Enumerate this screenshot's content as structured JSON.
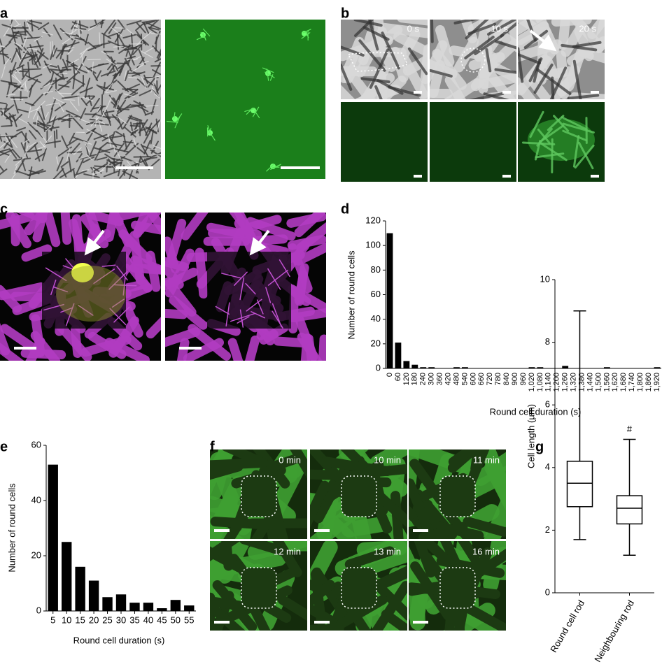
{
  "panel_labels": [
    "a",
    "b",
    "c",
    "d",
    "e",
    "f",
    "g"
  ],
  "image_labels": {
    "b": [
      "0 s",
      "10 s",
      "20 s"
    ],
    "f": [
      "0 min",
      "10 min",
      "11 min",
      "12 min",
      "13 min",
      "16 min"
    ]
  },
  "chart_data": [
    {
      "type": "bar",
      "color": "#000000",
      "x_label": "Round cell duration (s)",
      "y_label": "Number of round cells",
      "categories": [
        "0",
        "60",
        "120",
        "180",
        "240",
        "300",
        "360",
        "420",
        "480",
        "540",
        "600",
        "660",
        "720",
        "780",
        "840",
        "900",
        "960",
        "1,020",
        "1,080",
        "1,140",
        "1,200",
        "1,260",
        "1,320",
        "1,380",
        "1,440",
        "1,500",
        "1,560",
        "1,620",
        "1,680",
        "1,740",
        "1,800",
        "1,860",
        "1,920"
      ],
      "values": [
        110,
        21,
        6,
        3,
        1,
        1,
        0,
        0,
        1,
        1,
        0,
        0,
        0,
        0,
        0,
        0,
        0,
        1,
        1,
        0,
        0,
        2,
        0,
        0,
        0,
        0,
        1,
        0,
        0,
        0,
        0,
        0,
        1
      ],
      "ylim": [
        0,
        120
      ],
      "yticks": [
        0,
        20,
        40,
        60,
        80,
        100,
        120
      ]
    },
    {
      "type": "bar",
      "color": "#000000",
      "x_label": "Round cell duration (s)",
      "y_label": "Number of round cells",
      "categories": [
        "5",
        "10",
        "15",
        "20",
        "25",
        "30",
        "35",
        "40",
        "45",
        "50",
        "55"
      ],
      "values": [
        53,
        25,
        16,
        11,
        5,
        6,
        3,
        3,
        1,
        4,
        2
      ],
      "ylim": [
        0,
        60
      ],
      "yticks": [
        0,
        20,
        40,
        60
      ]
    },
    {
      "type": "box",
      "y_label": "Cell length (µm)",
      "categories": [
        "Round cell rod",
        "Neighbouring rod"
      ],
      "boxes": [
        {
          "min": 1.7,
          "q1": 2.75,
          "median": 3.5,
          "q3": 4.2,
          "max": 9.0
        },
        {
          "min": 1.2,
          "q1": 2.2,
          "median": 2.7,
          "q3": 3.1,
          "max": 4.9
        }
      ],
      "annotation": "#",
      "ylim": [
        0,
        10
      ],
      "yticks": [
        0,
        2,
        4,
        6,
        8,
        10
      ]
    }
  ]
}
